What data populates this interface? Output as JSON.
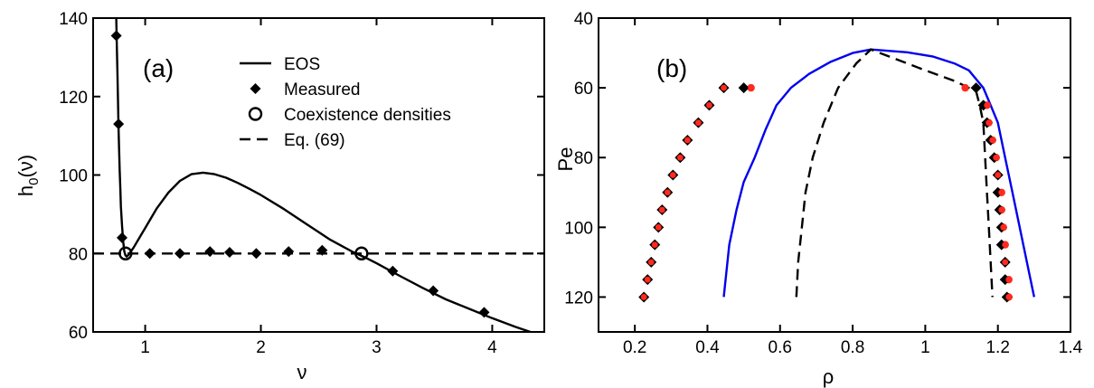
{
  "chart_data": [
    {
      "type": "line",
      "panel_label": "(a)",
      "xlabel": "ν",
      "ylabel": "h",
      "ylabel_sub": "0",
      "ylabel_tail": "(ν)",
      "xlim": [
        0.55,
        4.45
      ],
      "ylim": [
        60,
        140
      ],
      "xticks": [
        1,
        2,
        3,
        4
      ],
      "yticks": [
        60,
        80,
        100,
        120,
        140
      ],
      "legend_position": "top-right",
      "legend": [
        {
          "name": "EOS",
          "style": "solid-line"
        },
        {
          "name": "Measured",
          "style": "filled-diamond"
        },
        {
          "name": "Coexistence densities",
          "style": "open-circle"
        },
        {
          "name": "Eq. (69)",
          "style": "dashed-line"
        }
      ],
      "series": [
        {
          "name": "EOS",
          "style": "solid-line",
          "points": [
            [
              0.75,
              140
            ],
            [
              0.755,
              133
            ],
            [
              0.76,
              126
            ],
            [
              0.765,
              119
            ],
            [
              0.77,
              112
            ],
            [
              0.775,
              106
            ],
            [
              0.78,
              101
            ],
            [
              0.785,
              96.5
            ],
            [
              0.79,
              92
            ],
            [
              0.8,
              87
            ],
            [
              0.81,
              83
            ],
            [
              0.82,
              80.5
            ],
            [
              0.83,
              79.5
            ],
            [
              0.84,
              79.2
            ],
            [
              0.86,
              79.8
            ],
            [
              0.9,
              81.5
            ],
            [
              0.95,
              84
            ],
            [
              1.0,
              86.5
            ],
            [
              1.1,
              91.5
            ],
            [
              1.2,
              95.5
            ],
            [
              1.3,
              98.5
            ],
            [
              1.4,
              100.2
            ],
            [
              1.5,
              100.6
            ],
            [
              1.6,
              100.2
            ],
            [
              1.7,
              99.3
            ],
            [
              1.8,
              98
            ],
            [
              1.9,
              96.5
            ],
            [
              2.0,
              94.9
            ],
            [
              2.2,
              91.3
            ],
            [
              2.4,
              87.4
            ],
            [
              2.6,
              83.5
            ],
            [
              2.8,
              80.3
            ],
            [
              2.9,
              79
            ],
            [
              3.0,
              77.5
            ],
            [
              3.2,
              74.3
            ],
            [
              3.4,
              71.2
            ],
            [
              3.6,
              68.3
            ],
            [
              3.8,
              65.9
            ],
            [
              4.0,
              63.5
            ],
            [
              4.2,
              61.3
            ],
            [
              4.35,
              59.8
            ]
          ]
        },
        {
          "name": "Measured",
          "style": "filled-diamond",
          "points": [
            [
              0.75,
              135.5
            ],
            [
              0.77,
              113
            ],
            [
              0.8,
              84
            ],
            [
              1.04,
              80
            ],
            [
              1.3,
              80
            ],
            [
              1.56,
              80.5
            ],
            [
              1.73,
              80.3
            ],
            [
              1.96,
              80
            ],
            [
              2.24,
              80.5
            ],
            [
              2.53,
              80.8
            ],
            [
              3.14,
              75.5
            ],
            [
              3.49,
              70.5
            ],
            [
              3.93,
              65
            ]
          ]
        },
        {
          "name": "Coexistence densities",
          "style": "open-circle",
          "points": [
            [
              0.83,
              80
            ],
            [
              2.87,
              80
            ]
          ]
        },
        {
          "name": "Eq. (69)",
          "style": "dashed-line",
          "points": [
            [
              0.55,
              80
            ],
            [
              4.45,
              80
            ]
          ]
        }
      ]
    },
    {
      "type": "line",
      "panel_label": "(b)",
      "xlabel": "ρ",
      "ylabel": "Pe",
      "xlim": [
        0.1,
        1.4
      ],
      "ylim": [
        130,
        40
      ],
      "y_inverted": true,
      "xticks": [
        0.2,
        0.4,
        0.6,
        0.8,
        1,
        1.2,
        1.4
      ],
      "xtick_labels": [
        "0.2",
        "0.4",
        "0.6",
        "0.8",
        "1",
        "1.2",
        "1.4"
      ],
      "yticks": [
        40,
        60,
        80,
        100,
        120
      ],
      "series": [
        {
          "style": "solid-line",
          "color": "#0000ee",
          "points": [
            [
              0.445,
              120
            ],
            [
              0.46,
              105
            ],
            [
              0.48,
              95
            ],
            [
              0.5,
              87
            ],
            [
              0.53,
              80
            ],
            [
              0.56,
              72
            ],
            [
              0.59,
              65
            ],
            [
              0.63,
              60
            ],
            [
              0.68,
              56
            ],
            [
              0.74,
              52.5
            ],
            [
              0.8,
              50
            ],
            [
              0.85,
              49
            ],
            [
              0.95,
              49.8
            ],
            [
              1.02,
              51
            ],
            [
              1.08,
              53
            ],
            [
              1.12,
              55
            ],
            [
              1.16,
              60
            ],
            [
              1.18,
              65
            ],
            [
              1.2,
              70
            ],
            [
              1.22,
              80
            ],
            [
              1.24,
              90
            ],
            [
              1.26,
              100
            ],
            [
              1.28,
              110
            ],
            [
              1.3,
              120
            ]
          ]
        },
        {
          "style": "dashed-line",
          "color": "#000000",
          "points": [
            [
              0.645,
              120
            ],
            [
              0.65,
              110
            ],
            [
              0.66,
              100
            ],
            [
              0.67,
              90
            ],
            [
              0.69,
              80
            ],
            [
              0.72,
              70
            ],
            [
              0.76,
              60
            ],
            [
              0.81,
              53
            ],
            [
              0.85,
              49
            ],
            [
              0.9,
              51
            ],
            [
              1.0,
              55
            ],
            [
              1.08,
              58
            ],
            [
              1.14,
              61
            ],
            [
              1.15,
              65
            ],
            [
              1.16,
              70
            ],
            [
              1.165,
              80
            ],
            [
              1.17,
              90
            ],
            [
              1.175,
              100
            ],
            [
              1.18,
              110
            ],
            [
              1.185,
              120
            ]
          ]
        },
        {
          "style": "diamond-markers",
          "color": "#000000",
          "points": [
            [
              0.225,
              120
            ],
            [
              0.235,
              115
            ],
            [
              0.245,
              110
            ],
            [
              0.255,
              105
            ],
            [
              0.265,
              100
            ],
            [
              0.275,
              95
            ],
            [
              0.29,
              90
            ],
            [
              0.305,
              85
            ],
            [
              0.325,
              80
            ],
            [
              0.345,
              75
            ],
            [
              0.375,
              70
            ],
            [
              0.405,
              65
            ],
            [
              0.445,
              60
            ],
            [
              0.5,
              60
            ],
            [
              1.14,
              60
            ],
            [
              1.16,
              65
            ],
            [
              1.17,
              70
            ],
            [
              1.18,
              75
            ],
            [
              1.19,
              80
            ],
            [
              1.2,
              85
            ],
            [
              1.2,
              90
            ],
            [
              1.205,
              95
            ],
            [
              1.21,
              100
            ],
            [
              1.21,
              105
            ],
            [
              1.22,
              110
            ],
            [
              1.22,
              115
            ],
            [
              1.225,
              120
            ]
          ]
        },
        {
          "style": "dot-markers",
          "color": "#ff2a1f",
          "points": [
            [
              0.225,
              120
            ],
            [
              0.235,
              115
            ],
            [
              0.245,
              110
            ],
            [
              0.255,
              105
            ],
            [
              0.265,
              100
            ],
            [
              0.275,
              95
            ],
            [
              0.29,
              90
            ],
            [
              0.305,
              85
            ],
            [
              0.325,
              80
            ],
            [
              0.345,
              75
            ],
            [
              0.375,
              70
            ],
            [
              0.405,
              65
            ],
            [
              0.445,
              60
            ],
            [
              0.52,
              60
            ],
            [
              1.11,
              60
            ],
            [
              1.17,
              65
            ],
            [
              1.175,
              70
            ],
            [
              1.185,
              75
            ],
            [
              1.195,
              80
            ],
            [
              1.2,
              85
            ],
            [
              1.21,
              90
            ],
            [
              1.21,
              95
            ],
            [
              1.215,
              100
            ],
            [
              1.22,
              105
            ],
            [
              1.22,
              110
            ],
            [
              1.23,
              115
            ],
            [
              1.23,
              120
            ]
          ]
        }
      ]
    }
  ]
}
